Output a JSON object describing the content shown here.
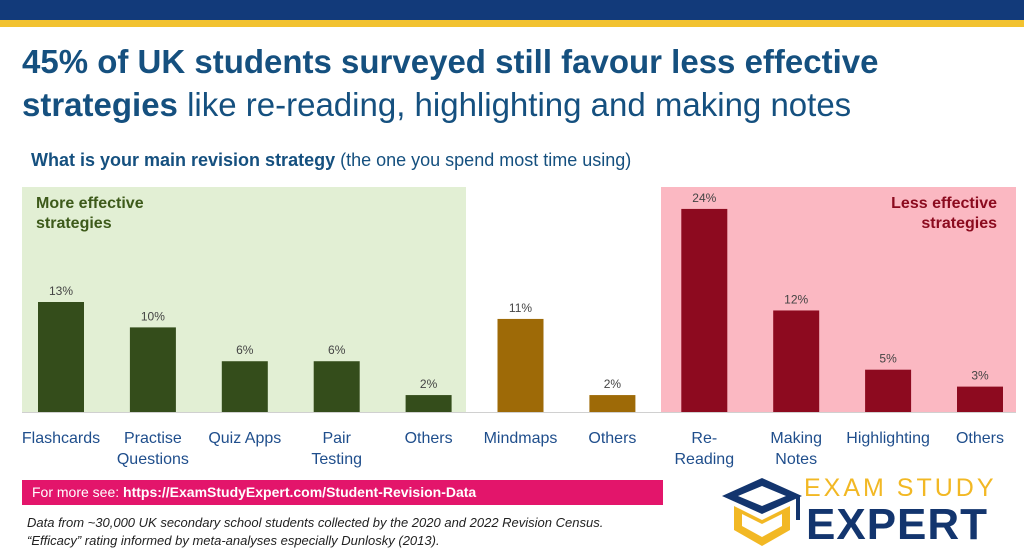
{
  "header": {
    "headline_bold": "45% of UK students surveyed still favour less effective strategies",
    "headline_rest": " like re-reading, highlighting and making notes",
    "question_bold": "What is your main revision strategy",
    "question_rest": " (the one you spend most time using)"
  },
  "chart_data": {
    "type": "bar",
    "title": "What is your main revision strategy (the one you spend most time using)",
    "categories": [
      "Flashcards",
      "Practise Questions",
      "Quiz Apps",
      "Pair Testing",
      "Others",
      "Mindmaps",
      "Others",
      "Re-Reading",
      "Making Notes",
      "Highlighting",
      "Others"
    ],
    "category_lines": [
      [
        "Flashcards"
      ],
      [
        "Practise",
        "Questions"
      ],
      [
        "Quiz Apps"
      ],
      [
        "Pair",
        "Testing"
      ],
      [
        "Others"
      ],
      [
        "Mindmaps"
      ],
      [
        "Others"
      ],
      [
        "Re-",
        "Reading"
      ],
      [
        "Making",
        "Notes"
      ],
      [
        "Highlighting"
      ],
      [
        "Others"
      ]
    ],
    "values": [
      13,
      10,
      6,
      6,
      2,
      11,
      2,
      24,
      12,
      5,
      3
    ],
    "value_labels": [
      "13%",
      "10%",
      "6%",
      "6%",
      "2%",
      "11%",
      "2%",
      "24%",
      "12%",
      "5%",
      "3%"
    ],
    "groups": [
      "more",
      "more",
      "more",
      "more",
      "more",
      "neutral",
      "neutral",
      "less",
      "less",
      "less",
      "less"
    ],
    "ylim": [
      0,
      26
    ],
    "grid": false,
    "legend": "none",
    "regions": [
      {
        "label_lines": [
          "More effective",
          "strategies"
        ],
        "color": "#e2efd4",
        "text_color": "#3d5a1a",
        "placement": "top-left"
      },
      {
        "label_lines": [
          "Less effective",
          "strategies"
        ],
        "color": "#fbb8c2",
        "text_color": "#8b0a1e",
        "placement": "top-right"
      }
    ],
    "colors": {
      "more": "#344d1b",
      "neutral": "#9e6a07",
      "less": "#8d0a1f",
      "axis": "#d0d0d0",
      "value_text": "#444444"
    }
  },
  "footer": {
    "link_prefix": "For more see: ",
    "link_url": "https://ExamStudyExpert.com/Student-Revision-Data",
    "source_line1": "Data from ~30,000 UK secondary school students collected by the 2020 and 2022 Revision Census.",
    "source_line2": "“Efficacy” rating informed by meta-analyses especially Dunlosky (2013)."
  },
  "logo": {
    "top_text": "EXAM STUDY",
    "bottom_text": "EXPERT",
    "icon": "graduation-cap-icon",
    "colors": {
      "navy": "#13356e",
      "gold": "#f2b824"
    }
  }
}
